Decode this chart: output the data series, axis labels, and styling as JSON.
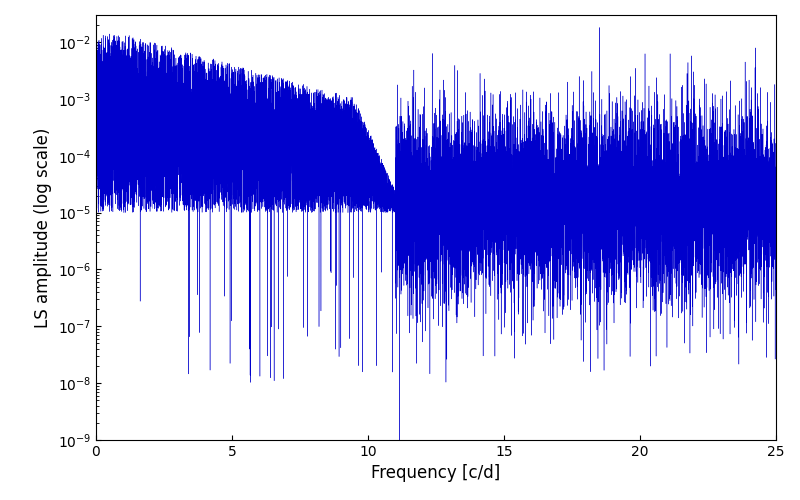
{
  "xlabel": "Frequency [c/d]",
  "ylabel": "LS amplitude (log scale)",
  "xlim": [
    0,
    25
  ],
  "ylim": [
    1e-09,
    0.03
  ],
  "line_color": "#0000cc",
  "line_width": 0.3,
  "background_color": "#ffffff",
  "figsize": [
    8.0,
    5.0
  ],
  "dpi": 100,
  "seed": 7,
  "n_points": 15000,
  "freq_max": 25.0
}
